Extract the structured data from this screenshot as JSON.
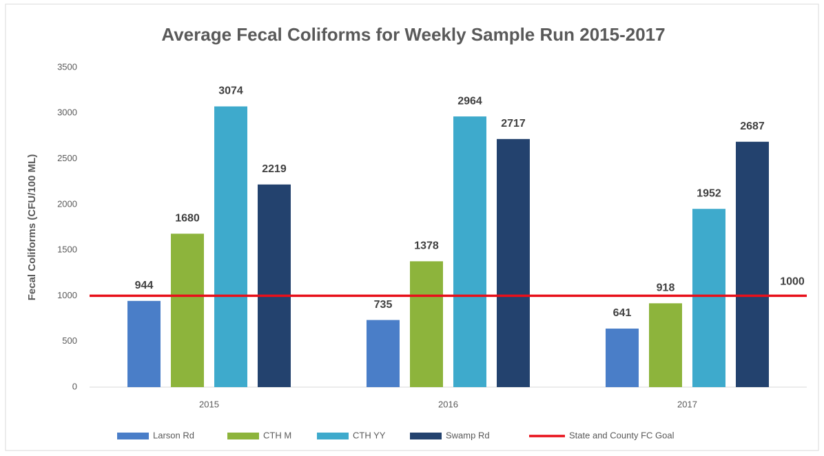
{
  "chart_data": {
    "type": "bar",
    "title": "Average Fecal Coliforms for Weekly Sample Run 2015-2017",
    "y_label": "Fecal Coliforms (CFU/100 ML)",
    "categories": [
      "2015",
      "2016",
      "2017"
    ],
    "series": [
      {
        "name": "Larson Rd",
        "color": "#4a7ec8",
        "values": [
          944,
          735,
          641
        ]
      },
      {
        "name": "CTH M",
        "color": "#8db43c",
        "values": [
          1680,
          1378,
          918
        ]
      },
      {
        "name": "CTH YY",
        "color": "#3eaacc",
        "values": [
          3074,
          2964,
          1952
        ]
      },
      {
        "name": "Swamp Rd",
        "color": "#23426e",
        "values": [
          2219,
          2717,
          2687
        ]
      }
    ],
    "reference_line": {
      "name": "State and County FC Goal",
      "value": 1000,
      "color": "#e8101a"
    },
    "ylim": [
      0,
      3500
    ],
    "yticks": [
      0,
      500,
      1000,
      1500,
      2000,
      2500,
      3000,
      3500
    ],
    "grid": false,
    "legend": "bottom"
  }
}
